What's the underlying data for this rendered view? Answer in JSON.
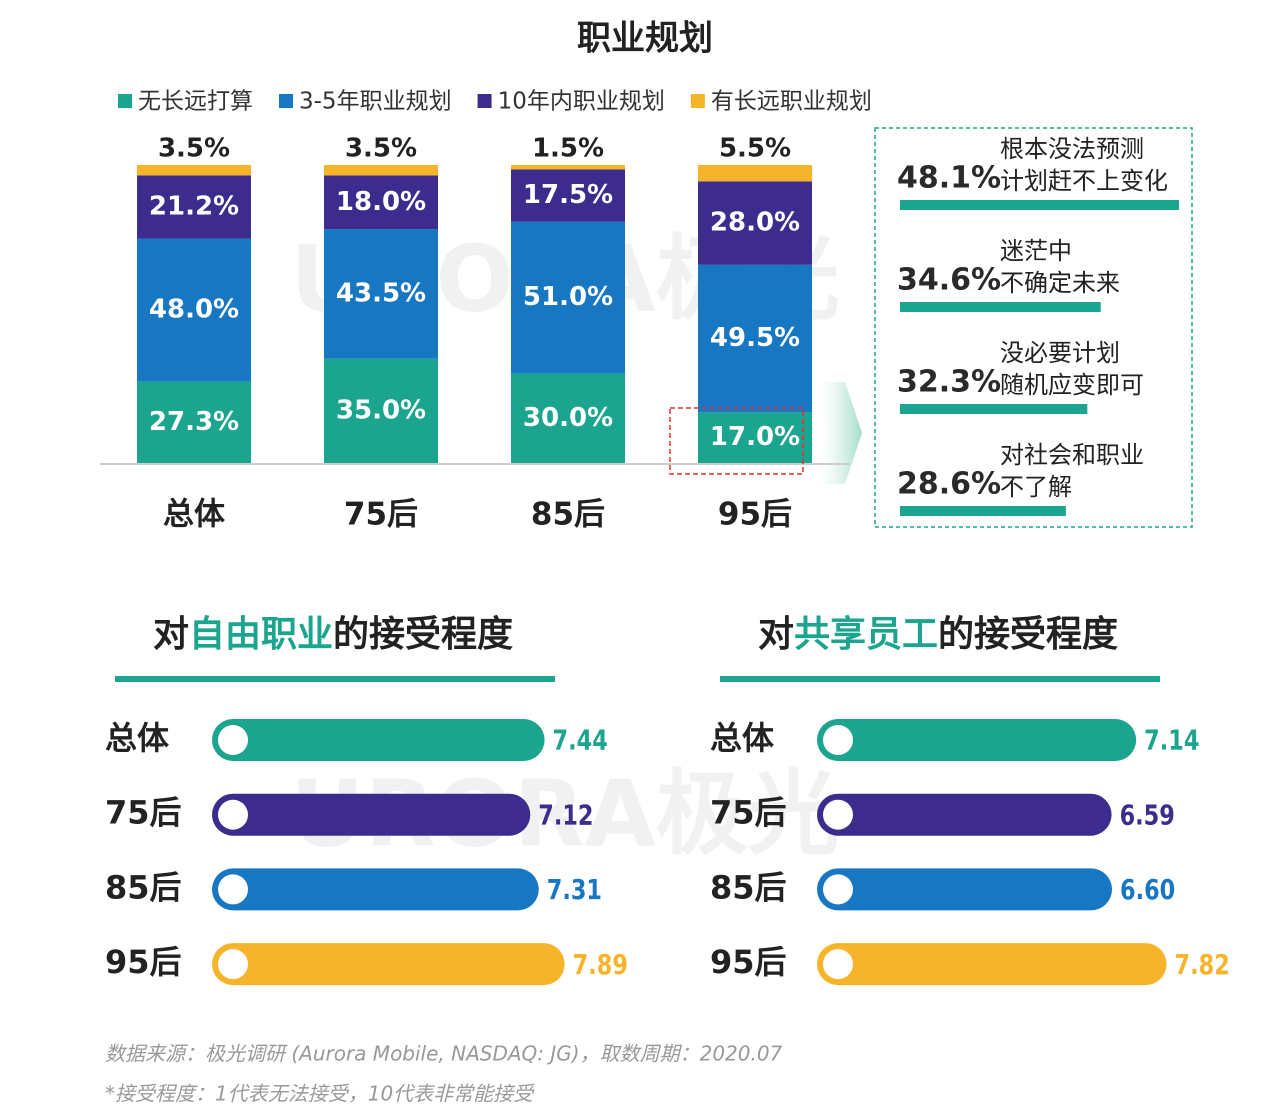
{
  "chart_data": [
    {
      "type": "stacked_bar",
      "title": "职业规划",
      "categories": [
        "总体",
        "75后",
        "85后",
        "95后"
      ],
      "series": [
        {
          "name": "无长远打算",
          "color": "#1ba48e",
          "values": [
            27.3,
            35.0,
            30.0,
            17.0
          ],
          "value_labels": [
            "27.3%",
            "35.0%",
            "30.0%",
            "17.0%"
          ]
        },
        {
          "name": "3-5年职业规划",
          "color": "#1777c3",
          "values": [
            48.0,
            43.5,
            51.0,
            49.5
          ],
          "value_labels": [
            "48.0%",
            "43.5%",
            "51.0%",
            "49.5%"
          ]
        },
        {
          "name": "10年内职业规划",
          "color": "#3d2c8d",
          "values": [
            21.2,
            18.0,
            17.5,
            28.0
          ],
          "value_labels": [
            "21.2%",
            "18.0%",
            "17.5%",
            "28.0%"
          ]
        },
        {
          "name": "有长远职业规划",
          "color": "#f6b42b",
          "values": [
            3.5,
            3.5,
            1.5,
            5.5
          ],
          "value_labels": [
            "3.5%",
            "3.5%",
            "1.5%",
            "5.5%"
          ]
        }
      ]
    },
    {
      "type": "reason_bars",
      "color": "#1ba48e",
      "categories": [
        "根本没法预测\n计划赶不上变化",
        "迷茫中\n不确定未来",
        "没必要计划\n随机应变即可",
        "对社会和职业\n不了解"
      ],
      "values": [
        48.1,
        34.6,
        32.3,
        28.6
      ],
      "value_labels": [
        "48.1%",
        "34.6%",
        "32.3%",
        "28.6%"
      ]
    },
    {
      "type": "hbar",
      "title_parts": [
        "对",
        "自由职业",
        "的接受程度"
      ],
      "highlight_color": "#1ba48e",
      "categories": [
        "总体",
        "75后",
        "85后",
        "95后"
      ],
      "colors": [
        "#1ba48e",
        "#3d2c8d",
        "#1777c3",
        "#f6b42b"
      ],
      "values": [
        7.44,
        7.12,
        7.31,
        7.89
      ]
    },
    {
      "type": "hbar",
      "title_parts": [
        "对",
        "共享员工",
        "的接受程度"
      ],
      "highlight_color": "#1ba48e",
      "categories": [
        "总体",
        "75后",
        "85后",
        "95后"
      ],
      "colors": [
        "#1ba48e",
        "#3d2c8d",
        "#1777c3",
        "#f6b42b"
      ],
      "values": [
        7.14,
        6.59,
        6.6,
        7.82
      ],
      "value_labels": [
        "7.14",
        "6.59",
        "6.60",
        "7.82"
      ]
    }
  ],
  "watermark": "URORA极光",
  "source": "数据来源：极光调研 (Aurora Mobile, NASDAQ: JG)，取数周期：2020.07",
  "note": "*接受程度：1代表无法接受，10代表非常能接受"
}
